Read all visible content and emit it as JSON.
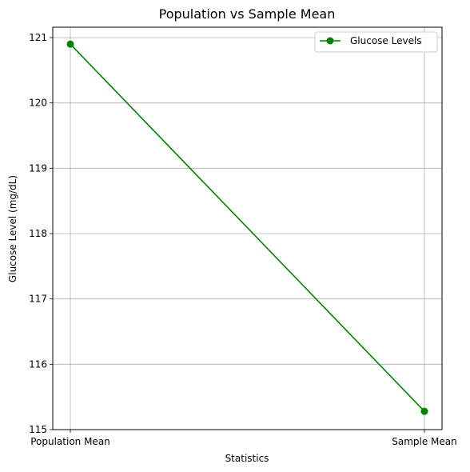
{
  "chart_data": {
    "type": "line",
    "title": "Population vs Sample Mean",
    "xlabel": "Statistics",
    "ylabel": "Glucose Level (mg/dL)",
    "categories": [
      "Population Mean",
      "Sample Mean"
    ],
    "series": [
      {
        "name": "Glucose Levels",
        "values": [
          120.9,
          115.28
        ],
        "color": "#008000",
        "marker": "circle"
      }
    ],
    "ylim": [
      115,
      121
    ],
    "yticks": [
      115,
      116,
      117,
      118,
      119,
      120,
      121
    ],
    "grid": true,
    "legend": "top-right"
  }
}
